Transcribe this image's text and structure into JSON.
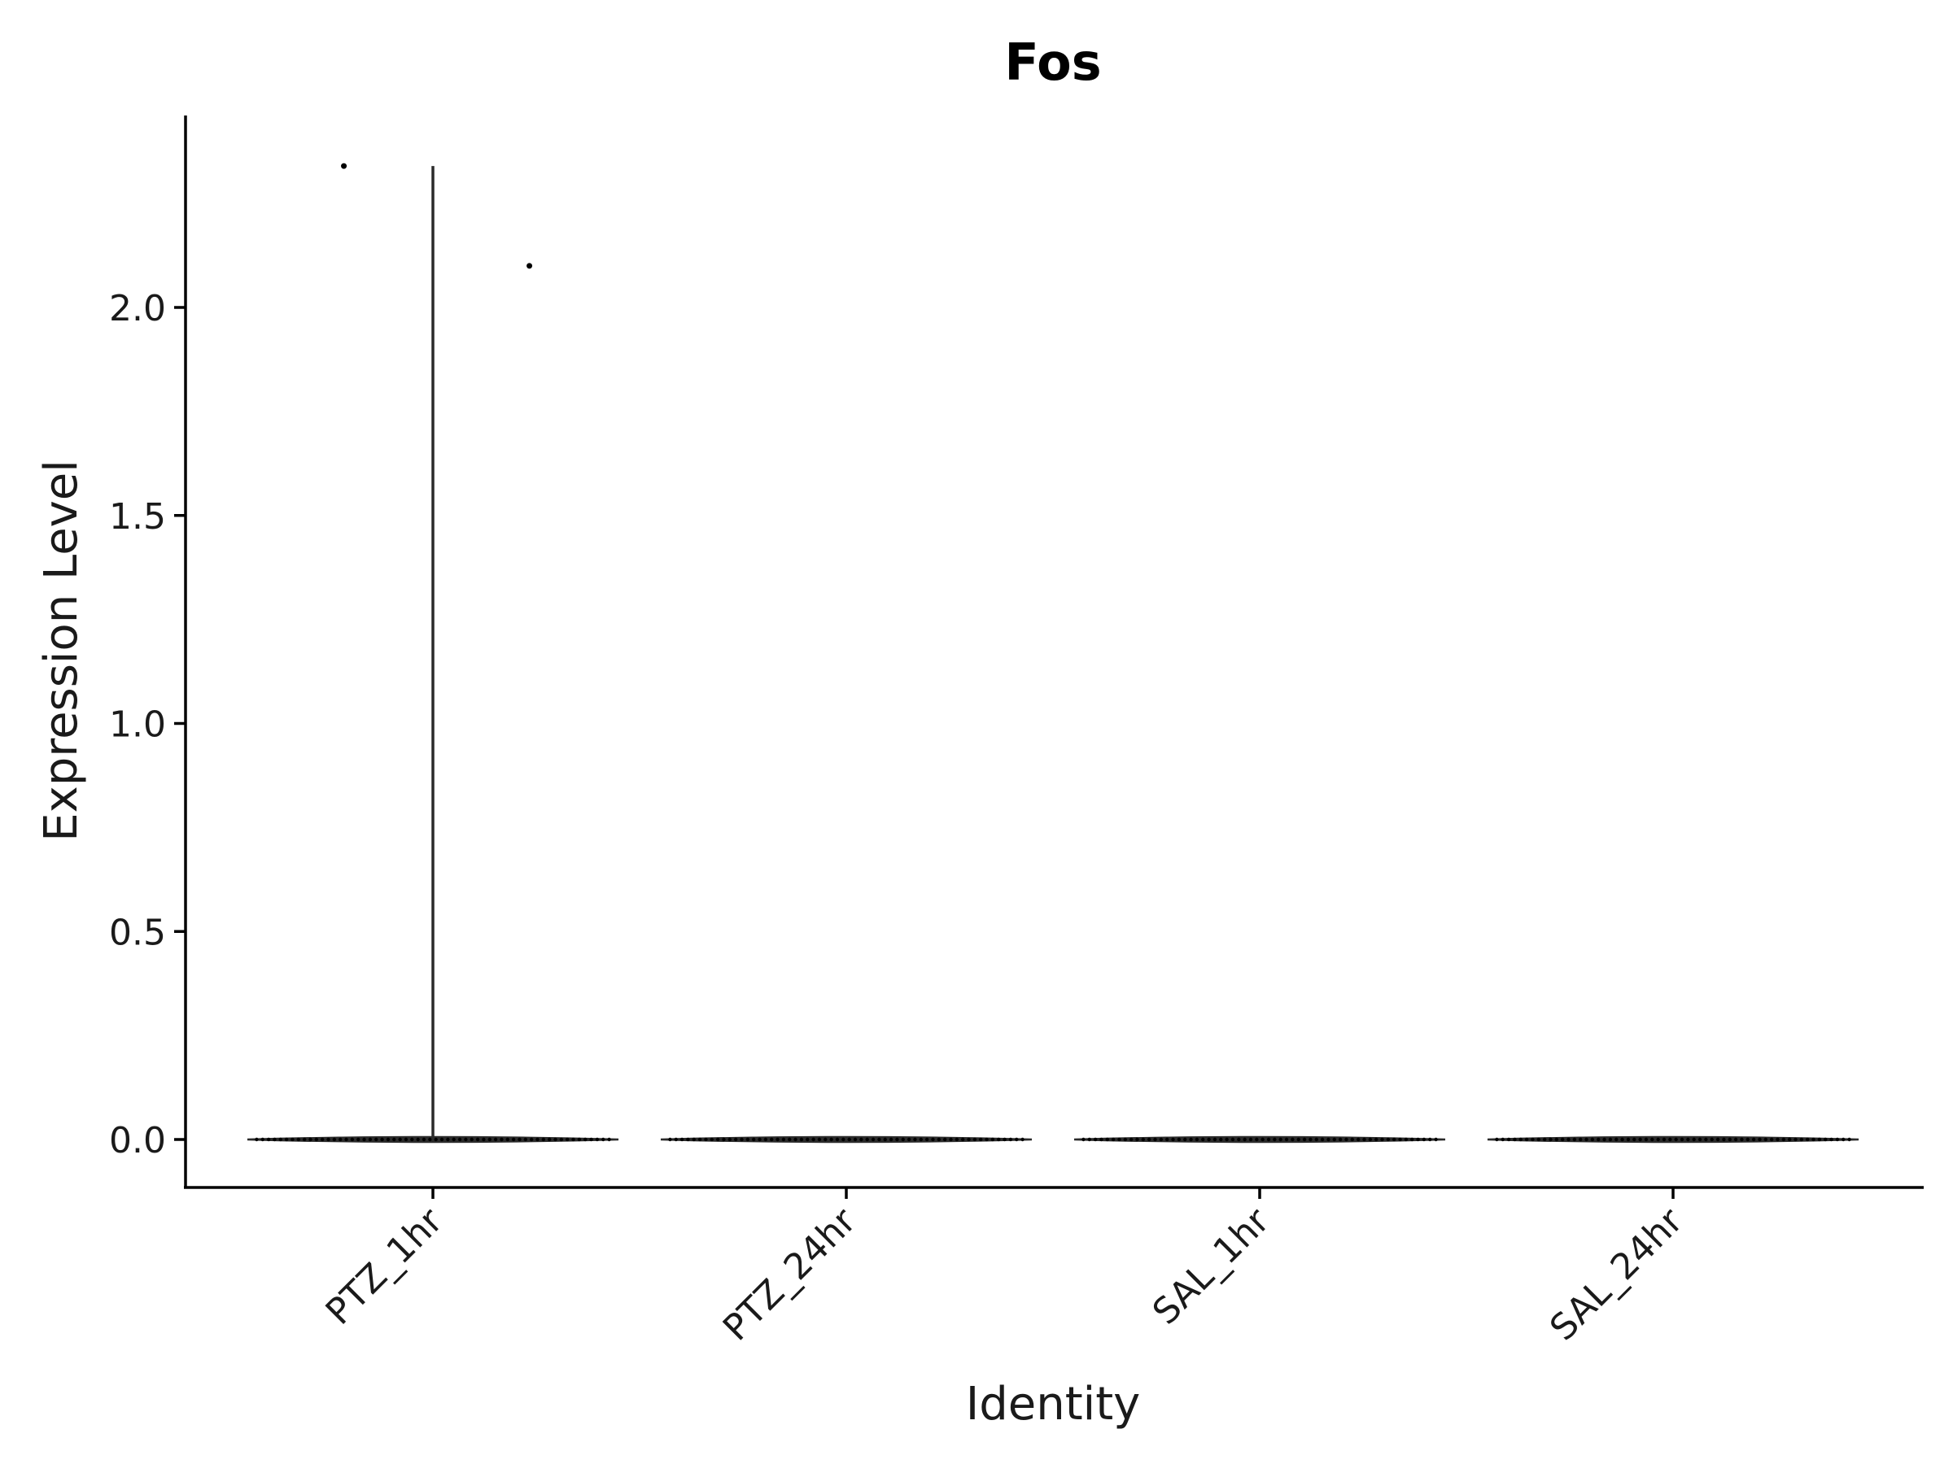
{
  "chart_data": {
    "type": "violin",
    "title": "Fos",
    "xlabel": "Identity",
    "ylabel": "Expression Level",
    "categories": [
      "PTZ_1hr",
      "PTZ_24hr",
      "SAL_1hr",
      "SAL_24hr"
    ],
    "ylim": [
      -0.11,
      2.46
    ],
    "yticks": [
      0.0,
      0.5,
      1.0,
      1.5,
      2.0
    ],
    "ytick_labels": [
      "0.0",
      "0.5",
      "1.0",
      "1.5",
      "2.0"
    ],
    "series": [
      {
        "category": "PTZ_1hr",
        "max": 2.34,
        "points": [
          {
            "offset": -0.48,
            "value": 2.34
          },
          {
            "offset": 0.52,
            "value": 2.1
          }
        ]
      },
      {
        "category": "PTZ_24hr",
        "max": 0.0,
        "points": []
      },
      {
        "category": "SAL_1hr",
        "max": 0.0,
        "points": []
      },
      {
        "category": "SAL_24hr",
        "max": 0.0,
        "points": []
      }
    ],
    "grid": false,
    "legend": "none"
  },
  "colors": {
    "violin_line": "#2b2b2b",
    "points": "#000000",
    "axis": "#000000"
  }
}
